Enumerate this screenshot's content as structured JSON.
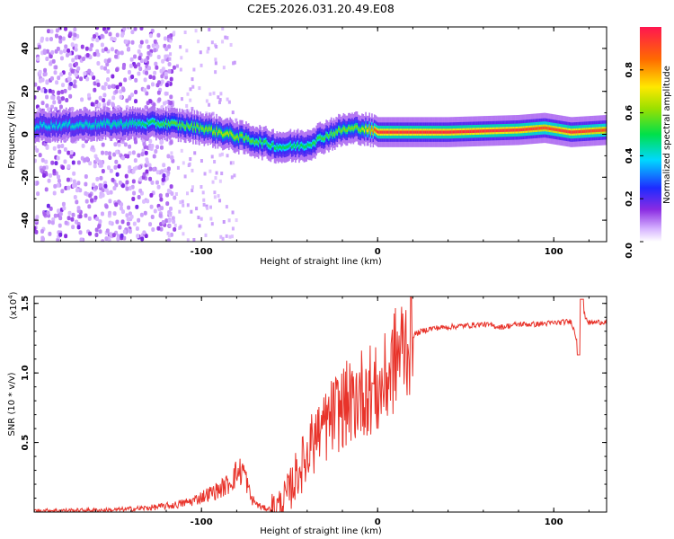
{
  "title": "C2E5.2026.031.20.49.E08",
  "chart_data": [
    {
      "type": "heatmap",
      "xlabel": "Height of straight line (km)",
      "ylabel": "Frequency (Hz)",
      "xlim": [
        -195,
        130
      ],
      "ylim": [
        -50,
        50
      ],
      "xticks": [
        -100,
        0,
        100
      ],
      "xtick_labels": [
        "-100",
        "0",
        "100"
      ],
      "yticks": [
        -40,
        -20,
        0,
        20,
        40
      ],
      "ytick_labels": [
        "-40",
        "-20",
        "0",
        "20",
        "40"
      ],
      "colorbar": {
        "label": "Normalized spectral amplitude",
        "range": [
          0,
          1
        ],
        "ticks": [
          0,
          0.2,
          0.4,
          0.6,
          0.8
        ],
        "tick_labels": [
          "0.0",
          "0.2",
          "0.4",
          "0.6",
          "0.8"
        ]
      },
      "ridge": [
        {
          "x": -195,
          "f": 4,
          "amp": 0.4
        },
        {
          "x": -140,
          "f": 5,
          "amp": 0.45
        },
        {
          "x": -120,
          "f": 5,
          "amp": 0.55
        },
        {
          "x": -100,
          "f": 3,
          "amp": 0.6
        },
        {
          "x": -85,
          "f": 0,
          "amp": 0.65
        },
        {
          "x": -70,
          "f": -3,
          "amp": 0.55
        },
        {
          "x": -55,
          "f": -6,
          "amp": 0.5
        },
        {
          "x": -40,
          "f": -5,
          "amp": 0.5
        },
        {
          "x": -30,
          "f": -1,
          "amp": 0.55
        },
        {
          "x": -20,
          "f": 2,
          "amp": 0.6
        },
        {
          "x": -10,
          "f": 3,
          "amp": 0.6
        },
        {
          "x": 0,
          "f": 1,
          "amp": 0.95
        },
        {
          "x": 40,
          "f": 1,
          "amp": 0.97
        },
        {
          "x": 80,
          "f": 2,
          "amp": 0.95
        },
        {
          "x": 95,
          "f": 3,
          "amp": 0.9
        },
        {
          "x": 110,
          "f": 1,
          "amp": 0.95
        },
        {
          "x": 130,
          "f": 2,
          "amp": 0.9
        }
      ]
    },
    {
      "type": "line",
      "xlabel": "Height of straight line (km)",
      "ylabel": "SNR (10 * v/v)",
      "y_scale_label": "(x10",
      "y_scale_exponent": "4",
      "xlim": [
        -195,
        130
      ],
      "ylim": [
        0,
        1.55
      ],
      "xticks": [
        -100,
        0,
        100
      ],
      "xtick_labels": [
        "-100",
        "0",
        "100"
      ],
      "yticks": [
        0.5,
        1.0,
        1.5
      ],
      "ytick_labels": [
        "0.5",
        "1.0",
        "1.5"
      ],
      "color": "#e8332a",
      "series": [
        {
          "name": "SNR",
          "x": [
            -195,
            -150,
            -130,
            -115,
            -105,
            -98,
            -90,
            -85,
            -80,
            -76,
            -72,
            -68,
            -65,
            -60,
            -55,
            -50,
            -45,
            -40,
            -35,
            -30,
            -25,
            -20,
            -15,
            -10,
            -5,
            0,
            5,
            10,
            15,
            20,
            25,
            30,
            40,
            50,
            60,
            70,
            80,
            90,
            100,
            110,
            114,
            116,
            120,
            130
          ],
          "y": [
            0.01,
            0.015,
            0.03,
            0.05,
            0.08,
            0.12,
            0.16,
            0.2,
            0.28,
            0.3,
            0.1,
            0.05,
            0.03,
            0.02,
            0.05,
            0.15,
            0.3,
            0.4,
            0.55,
            0.6,
            0.7,
            0.75,
            0.8,
            0.85,
            0.9,
            0.85,
            0.95,
            1.1,
            1.2,
            1.27,
            1.3,
            1.32,
            1.33,
            1.34,
            1.35,
            1.33,
            1.35,
            1.35,
            1.36,
            1.37,
            1.2,
            1.45,
            1.36,
            1.37
          ]
        }
      ]
    }
  ]
}
